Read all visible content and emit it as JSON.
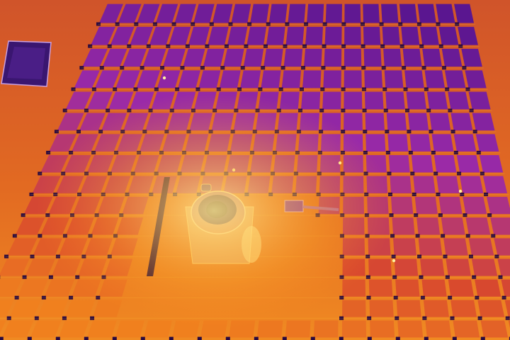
{
  "image": {
    "kind": "thermal-aerial-photo",
    "subject": "rooftop-solar-array",
    "palette": {
      "cold": "#5a1690",
      "cool": "#9a2aa8",
      "mid": "#d8482e",
      "warm": "#f0801e",
      "hot": "#ffc238",
      "hottest": "#fff2a0"
    },
    "array": {
      "rows": 16,
      "columns": 20
    },
    "features": [
      "roof-drain",
      "roof-hatch",
      "conduit-pipe",
      "cable-tray"
    ]
  }
}
